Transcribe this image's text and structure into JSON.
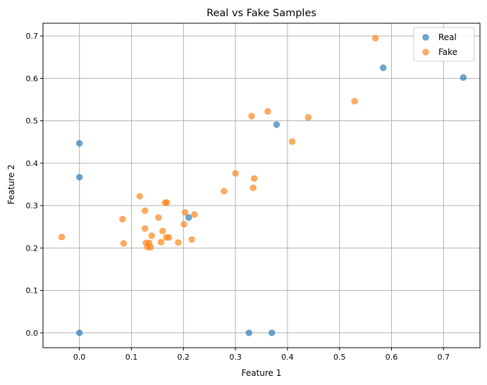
{
  "chart_data": {
    "type": "scatter",
    "title": "Real vs Fake Samples",
    "xlabel": "Feature 1",
    "ylabel": "Feature 2",
    "xlim": [
      -0.07,
      0.77
    ],
    "ylim": [
      -0.035,
      0.73
    ],
    "xticks": [
      0.0,
      0.1,
      0.2,
      0.3,
      0.4,
      0.5,
      0.6,
      0.7
    ],
    "yticks": [
      0.0,
      0.1,
      0.2,
      0.3,
      0.4,
      0.5,
      0.6,
      0.7
    ],
    "grid": true,
    "legend_position": "top-right",
    "series": [
      {
        "name": "Real",
        "color": "#1f77b4",
        "points": [
          [
            0.0,
            0.447
          ],
          [
            0.0,
            0.367
          ],
          [
            0.0,
            0.0
          ],
          [
            0.21,
            0.272
          ],
          [
            0.326,
            0.0
          ],
          [
            0.37,
            0.0
          ],
          [
            0.379,
            0.491
          ],
          [
            0.584,
            0.625
          ],
          [
            0.738,
            0.602
          ]
        ]
      },
      {
        "name": "Fake",
        "color": "#ff7f0e",
        "points": [
          [
            -0.034,
            0.226
          ],
          [
            0.083,
            0.268
          ],
          [
            0.085,
            0.211
          ],
          [
            0.116,
            0.322
          ],
          [
            0.126,
            0.288
          ],
          [
            0.126,
            0.246
          ],
          [
            0.128,
            0.212
          ],
          [
            0.131,
            0.202
          ],
          [
            0.134,
            0.212
          ],
          [
            0.137,
            0.202
          ],
          [
            0.139,
            0.229
          ],
          [
            0.152,
            0.272
          ],
          [
            0.157,
            0.214
          ],
          [
            0.16,
            0.24
          ],
          [
            0.165,
            0.307
          ],
          [
            0.168,
            0.307
          ],
          [
            0.167,
            0.225
          ],
          [
            0.172,
            0.225
          ],
          [
            0.19,
            0.213
          ],
          [
            0.201,
            0.256
          ],
          [
            0.203,
            0.284
          ],
          [
            0.216,
            0.22
          ],
          [
            0.221,
            0.279
          ],
          [
            0.278,
            0.334
          ],
          [
            0.3,
            0.376
          ],
          [
            0.331,
            0.511
          ],
          [
            0.334,
            0.342
          ],
          [
            0.336,
            0.364
          ],
          [
            0.362,
            0.522
          ],
          [
            0.409,
            0.451
          ],
          [
            0.44,
            0.508
          ],
          [
            0.529,
            0.546
          ],
          [
            0.569,
            0.695
          ]
        ]
      }
    ]
  }
}
